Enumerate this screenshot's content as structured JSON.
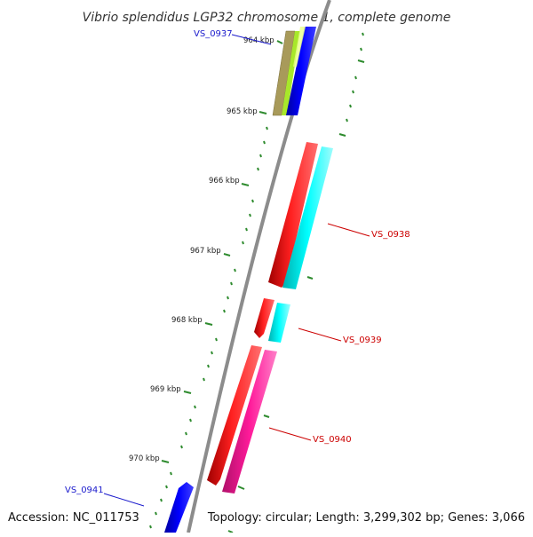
{
  "title": "Vibrio splendidus LGP32 chromosome 1, complete genome",
  "footer": {
    "accession": "Accession: NC_011753",
    "topology": "Topology: circular; Length: 3,299,302 bp; Genes: 3,066"
  },
  "ticks": [
    "964 kbp",
    "965 kbp",
    "966 kbp",
    "967 kbp",
    "968 kbp",
    "969 kbp",
    "970 kbp"
  ],
  "genes": {
    "vs0937": "VS_0937",
    "vs0938": "VS_0938",
    "vs0939": "VS_0939",
    "vs0940": "VS_0940",
    "vs0941": "VS_0941"
  },
  "colors": {
    "backbone": "#8c8c8c",
    "tick": "#2e8b2e",
    "red_gene": "#ee0000",
    "cyan_gene": "#00eeee",
    "magenta_gene": "#ee1493",
    "blue_gene": "#0000ee",
    "olive_gene": "#a89a5a",
    "lime_gene": "#a8e82a"
  }
}
